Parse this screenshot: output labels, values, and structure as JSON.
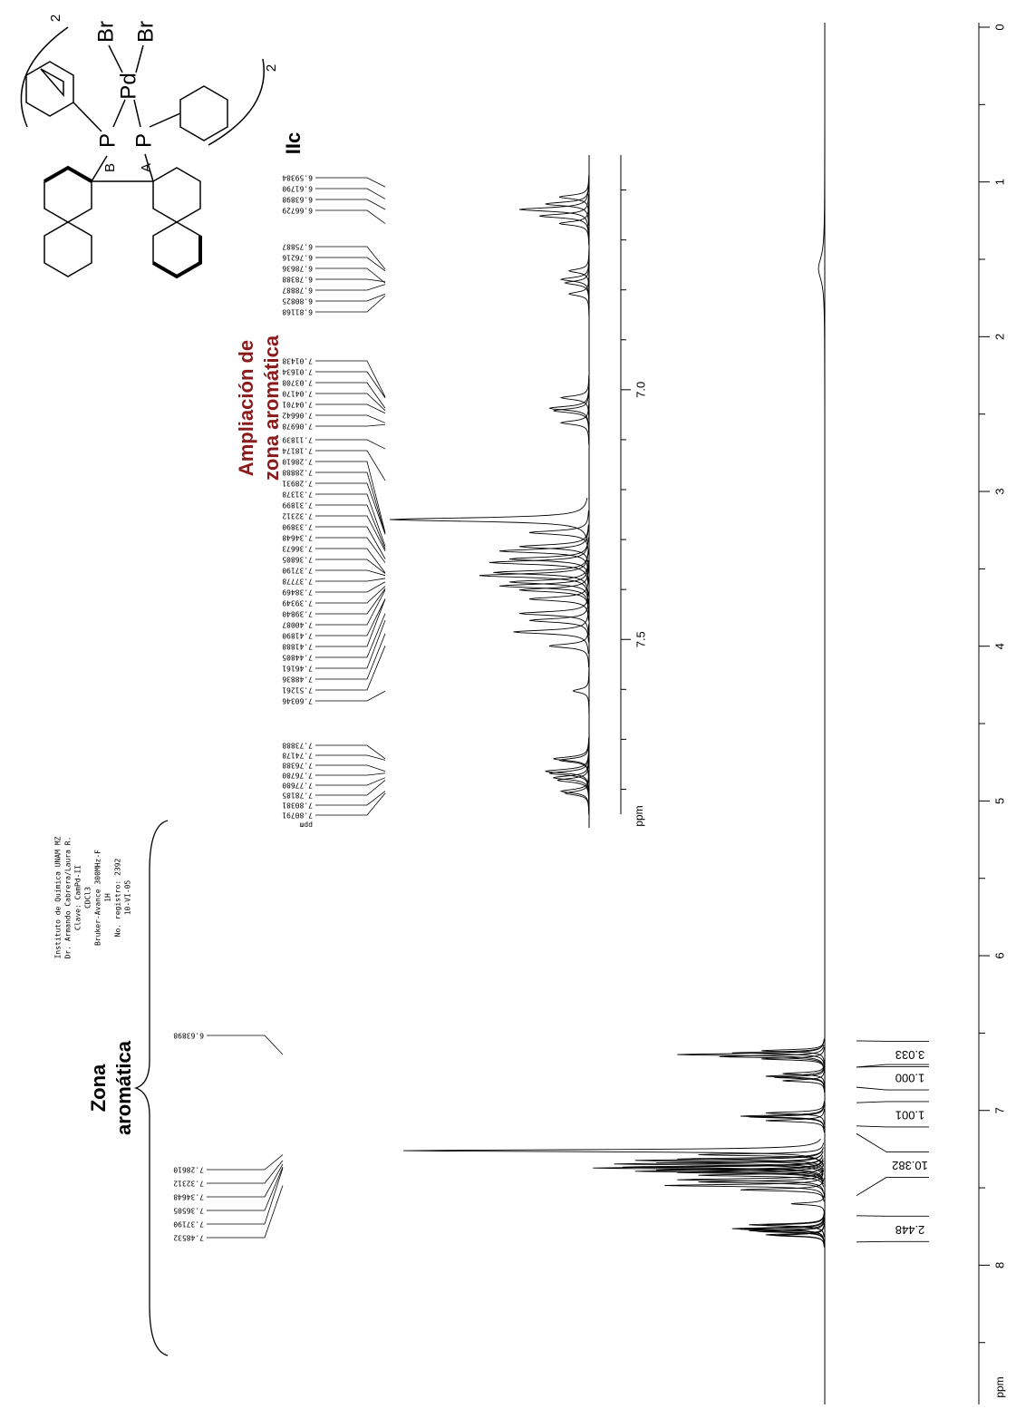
{
  "chart_data": {
    "type": "nmr",
    "xlabel": "ppm",
    "xlim": [
      0,
      8.9
    ],
    "xticks": [
      0,
      1,
      2,
      3,
      4,
      5,
      6,
      7,
      8
    ],
    "xminor": [
      0.5,
      1.5,
      2.5,
      3.5,
      4.5,
      5.5,
      6.5,
      7.5,
      8.5
    ],
    "ylim": [
      0,
      100
    ],
    "color": "#000000",
    "peaks": {
      "ppm": [
        6.614,
        6.628,
        6.639,
        6.652,
        6.667,
        6.762,
        6.779,
        6.786,
        6.808,
        7.016,
        7.037,
        7.042,
        7.066,
        7.26,
        7.286,
        7.314,
        7.323,
        7.339,
        7.346,
        7.366,
        7.372,
        7.385,
        7.393,
        7.401,
        7.419,
        7.448,
        7.462,
        7.485,
        7.513,
        7.603,
        7.739,
        7.742,
        7.764,
        7.768,
        7.777,
        7.782,
        7.804,
        7.808,
        1.56
      ],
      "intensity": [
        15,
        22,
        35,
        25,
        15,
        10,
        14,
        12,
        10,
        14,
        20,
        18,
        14,
        100,
        30,
        35,
        45,
        40,
        50,
        48,
        55,
        40,
        45,
        35,
        30,
        35,
        30,
        38,
        20,
        8,
        18,
        15,
        22,
        20,
        18,
        16,
        14,
        12,
        1.5
      ]
    },
    "peak_labels": [
      [
        "6.63898"
      ],
      [
        "7.28610",
        "7.32312",
        "7.34648",
        "7.36505",
        "7.37190",
        "7.48532"
      ]
    ],
    "integrals": {
      "values": [
        3.033,
        1,
        1.001,
        10.382,
        2.448
      ],
      "value_labels": [
        "3.033",
        "1.000",
        "1.001",
        "10.382",
        "2.448"
      ],
      "ranges": [
        [
          6.55,
          6.72
        ],
        [
          6.72,
          6.85
        ],
        [
          6.95,
          7.1
        ],
        [
          7.15,
          7.55
        ],
        [
          7.68,
          7.85
        ]
      ]
    },
    "inset": {
      "xlim": [
        6.53,
        7.85
      ],
      "xticks": [
        {
          "value": 7,
          "label": "7.0"
        },
        {
          "value": 7.5,
          "label": "7.5"
        }
      ],
      "xminor": [
        6.6,
        6.7,
        6.8,
        6.9,
        7.1,
        7.2,
        7.3,
        7.4,
        7.6,
        7.7,
        7.8
      ],
      "xlabel": "ppm",
      "peak_labels": [
        [
          "6.59384",
          "6.61790",
          "6.63898",
          "6.66729"
        ],
        [
          "6.75887",
          "6.76216",
          "6.78636",
          "6.78388",
          "6.78887",
          "6.80825",
          "6.81168"
        ],
        [
          "7.01438",
          "7.01634",
          "7.03708",
          "7.04170",
          "7.04701",
          "7.06642",
          "7.06978"
        ],
        [
          "7.11839",
          "7.18174",
          "7.28610",
          "7.28888",
          "7.28931",
          "7.31378",
          "7.31899",
          "7.32312",
          "7.33890",
          "7.34648",
          "7.36673",
          "7.36805",
          "7.37190",
          "7.37778",
          "7.38469",
          "7.39349",
          "7.39840",
          "7.40087",
          "7.41890",
          "7.41888",
          "7.44805",
          "7.46161",
          "7.48836",
          "7.51261",
          "7.60346"
        ],
        [
          "7.73888",
          "7.74178",
          "7.76388",
          "7.76780",
          "7.77680",
          "7.78185",
          "7.80381",
          "7.80791"
        ]
      ],
      "peak_label_unit": "ppm"
    }
  },
  "annotations": {
    "zona": [
      "Zona",
      "aromática"
    ],
    "ampliacion": [
      "Ampliación de",
      "zona aromática"
    ],
    "compound": "IIc"
  },
  "info": [
    "Instituto de Química UNAM MZ",
    "Dr. Armando Cabrera/Laura R.",
    "Clave: CamPd-II",
    "CDCl3",
    "Bruker-Avance 300MHz-F",
    "1H",
    "No. registro: 2392",
    "10-VI-05"
  ],
  "molecule": {
    "br1": "Br",
    "br2": "Br",
    "pd": "Pd",
    "pa": "P",
    "pb": "P",
    "a": "A",
    "b": "B",
    "n1": "2",
    "n2": "2"
  }
}
